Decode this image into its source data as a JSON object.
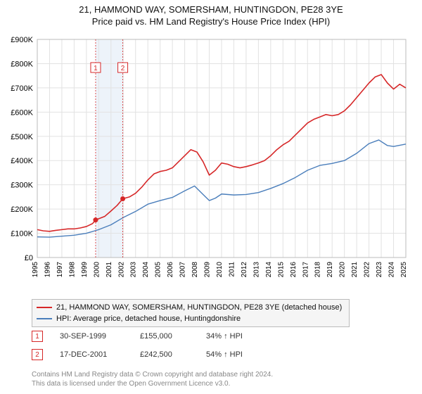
{
  "title_line1": "21, HAMMOND WAY, SOMERSHAM, HUNTINGDON, PE28 3YE",
  "title_line2": "Price paid vs. HM Land Registry's House Price Index (HPI)",
  "title_fontsize": 13,
  "chart": {
    "type": "line",
    "background_color": "#ffffff",
    "plot_border_color": "#bbbbbb",
    "grid_color": "#e2e2e2",
    "yaxis": {
      "min": 0,
      "max": 900000,
      "tick_step": 100000,
      "tick_labels": [
        "£0",
        "£100K",
        "£200K",
        "£300K",
        "£400K",
        "£500K",
        "£600K",
        "£700K",
        "£800K",
        "£900K"
      ],
      "label_fontsize": 11,
      "label_color": "#000000"
    },
    "xaxis": {
      "years": [
        1995,
        1996,
        1997,
        1998,
        1999,
        2000,
        2001,
        2002,
        2003,
        2004,
        2005,
        2006,
        2007,
        2008,
        2009,
        2010,
        2011,
        2012,
        2013,
        2014,
        2015,
        2016,
        2017,
        2018,
        2019,
        2020,
        2021,
        2022,
        2023,
        2024,
        2025
      ],
      "label_fontsize": 10,
      "label_color": "#000000",
      "label_rotation": -90
    },
    "highlight_band": {
      "from_year": 1999.75,
      "to_year": 2001.96,
      "color": "#edf3fa"
    },
    "series": [
      {
        "name": "price_paid",
        "label": "21, HAMMOND WAY, SOMERSHAM, HUNTINGDON, PE28 3YE (detached house)",
        "color": "#d62728",
        "line_width": 1.6,
        "data": [
          [
            1995.0,
            115000
          ],
          [
            1995.5,
            110000
          ],
          [
            1996.0,
            108000
          ],
          [
            1996.5,
            112000
          ],
          [
            1997.0,
            115000
          ],
          [
            1997.5,
            118000
          ],
          [
            1998.0,
            118000
          ],
          [
            1998.5,
            122000
          ],
          [
            1999.0,
            128000
          ],
          [
            1999.5,
            140000
          ],
          [
            1999.75,
            155000
          ],
          [
            2000.0,
            160000
          ],
          [
            2000.5,
            170000
          ],
          [
            2001.0,
            192000
          ],
          [
            2001.5,
            215000
          ],
          [
            2001.96,
            242500
          ],
          [
            2002.5,
            250000
          ],
          [
            2003.0,
            265000
          ],
          [
            2003.5,
            290000
          ],
          [
            2004.0,
            320000
          ],
          [
            2004.5,
            345000
          ],
          [
            2005.0,
            355000
          ],
          [
            2005.5,
            360000
          ],
          [
            2006.0,
            370000
          ],
          [
            2006.5,
            395000
          ],
          [
            2007.0,
            420000
          ],
          [
            2007.5,
            445000
          ],
          [
            2008.0,
            435000
          ],
          [
            2008.5,
            395000
          ],
          [
            2009.0,
            340000
          ],
          [
            2009.5,
            360000
          ],
          [
            2010.0,
            390000
          ],
          [
            2010.5,
            385000
          ],
          [
            2011.0,
            375000
          ],
          [
            2011.5,
            370000
          ],
          [
            2012.0,
            375000
          ],
          [
            2012.5,
            382000
          ],
          [
            2013.0,
            390000
          ],
          [
            2013.5,
            400000
          ],
          [
            2014.0,
            420000
          ],
          [
            2014.5,
            445000
          ],
          [
            2015.0,
            465000
          ],
          [
            2015.5,
            480000
          ],
          [
            2016.0,
            505000
          ],
          [
            2016.5,
            530000
          ],
          [
            2017.0,
            555000
          ],
          [
            2017.5,
            570000
          ],
          [
            2018.0,
            580000
          ],
          [
            2018.5,
            590000
          ],
          [
            2019.0,
            585000
          ],
          [
            2019.5,
            590000
          ],
          [
            2020.0,
            605000
          ],
          [
            2020.5,
            630000
          ],
          [
            2021.0,
            660000
          ],
          [
            2021.5,
            690000
          ],
          [
            2022.0,
            720000
          ],
          [
            2022.5,
            745000
          ],
          [
            2023.0,
            755000
          ],
          [
            2023.5,
            720000
          ],
          [
            2024.0,
            695000
          ],
          [
            2024.5,
            715000
          ],
          [
            2025.0,
            700000
          ]
        ]
      },
      {
        "name": "hpi",
        "label": "HPI: Average price, detached house, Huntingdonshire",
        "color": "#4a7ebb",
        "line_width": 1.4,
        "data": [
          [
            1995.0,
            85000
          ],
          [
            1996.0,
            84000
          ],
          [
            1997.0,
            88000
          ],
          [
            1998.0,
            92000
          ],
          [
            1999.0,
            100000
          ],
          [
            2000.0,
            115000
          ],
          [
            2001.0,
            135000
          ],
          [
            2002.0,
            165000
          ],
          [
            2003.0,
            190000
          ],
          [
            2004.0,
            220000
          ],
          [
            2005.0,
            235000
          ],
          [
            2006.0,
            248000
          ],
          [
            2007.0,
            275000
          ],
          [
            2007.8,
            295000
          ],
          [
            2008.5,
            260000
          ],
          [
            2009.0,
            235000
          ],
          [
            2009.5,
            245000
          ],
          [
            2010.0,
            262000
          ],
          [
            2011.0,
            258000
          ],
          [
            2012.0,
            260000
          ],
          [
            2013.0,
            268000
          ],
          [
            2014.0,
            285000
          ],
          [
            2015.0,
            305000
          ],
          [
            2016.0,
            330000
          ],
          [
            2017.0,
            360000
          ],
          [
            2018.0,
            380000
          ],
          [
            2019.0,
            388000
          ],
          [
            2020.0,
            400000
          ],
          [
            2021.0,
            430000
          ],
          [
            2022.0,
            470000
          ],
          [
            2022.8,
            485000
          ],
          [
            2023.5,
            462000
          ],
          [
            2024.0,
            458000
          ],
          [
            2025.0,
            468000
          ]
        ]
      }
    ],
    "sale_markers": [
      {
        "n": "1",
        "year": 1999.75,
        "value": 155000,
        "color": "#d62728"
      },
      {
        "n": "2",
        "year": 2001.96,
        "value": 242500,
        "color": "#d62728"
      }
    ],
    "marker_label_y_offset": 45,
    "marker_dot_radius": 3.5
  },
  "legend": {
    "border_color": "#bbbbbb",
    "background_color": "#f5f5f5",
    "fontsize": 11
  },
  "sales_table": {
    "rows": [
      {
        "n": "1",
        "date": "30-SEP-1999",
        "price": "£155,000",
        "pct": "34% ↑ HPI",
        "color": "#d62728"
      },
      {
        "n": "2",
        "date": "17-DEC-2001",
        "price": "£242,500",
        "pct": "54% ↑ HPI",
        "color": "#d62728"
      }
    ],
    "fontsize": 11
  },
  "footer": {
    "line1": "Contains HM Land Registry data © Crown copyright and database right 2024.",
    "line2": "This data is licensed under the Open Government Licence v3.0.",
    "color": "#888888",
    "fontsize": 10
  }
}
